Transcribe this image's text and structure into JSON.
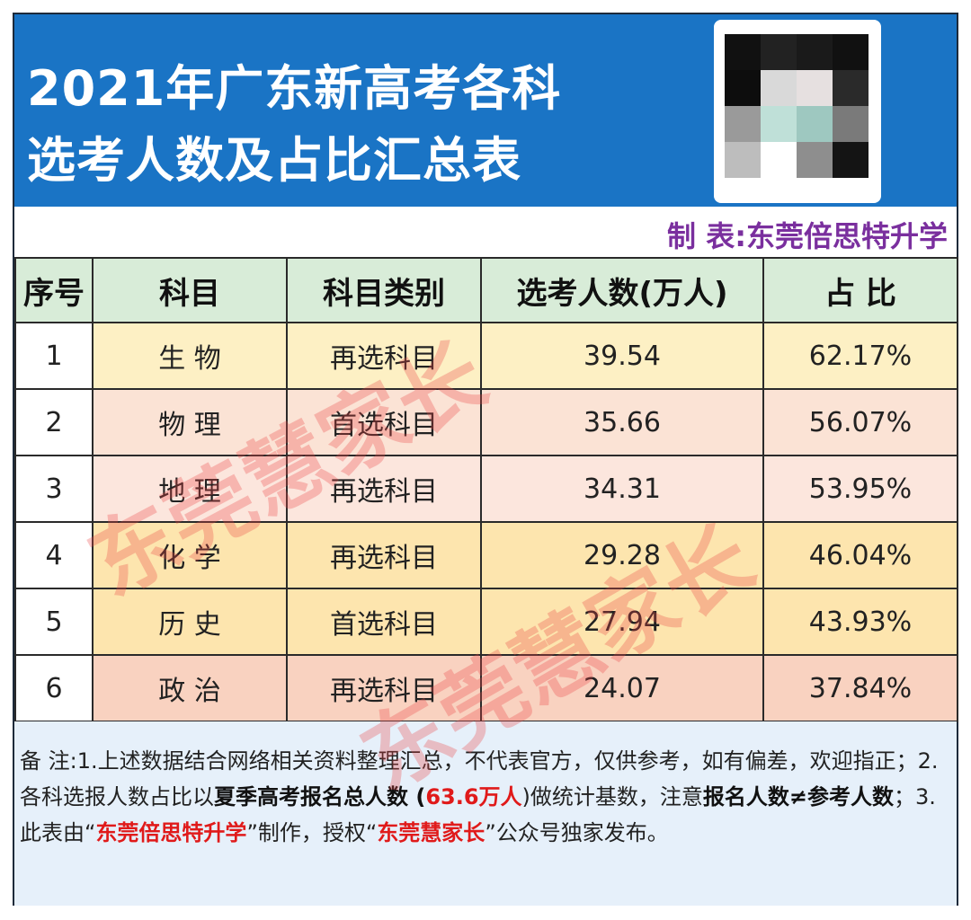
{
  "header": {
    "title_line1": "2021年广东新高考各科",
    "title_line2": "选考人数及占比汇总表",
    "maker": "制 表:东莞倍思特升学"
  },
  "table": {
    "headers": [
      "序号",
      "科目",
      "科目类别",
      "选考人数(万人)",
      "占 比"
    ],
    "rows": [
      {
        "seq": "1",
        "subject": "生 物",
        "category": "再选科目",
        "count": "39.54",
        "ratio": "62.17%"
      },
      {
        "seq": "2",
        "subject": "物 理",
        "category": "首选科目",
        "count": "35.66",
        "ratio": "56.07%"
      },
      {
        "seq": "3",
        "subject": "地 理",
        "category": "再选科目",
        "count": "34.31",
        "ratio": "53.95%"
      },
      {
        "seq": "4",
        "subject": "化 学",
        "category": "再选科目",
        "count": "29.28",
        "ratio": "46.04%"
      },
      {
        "seq": "5",
        "subject": "历 史",
        "category": "首选科目",
        "count": "27.94",
        "ratio": "43.93%"
      },
      {
        "seq": "6",
        "subject": "政 治",
        "category": "再选科目",
        "count": "24.07",
        "ratio": "37.84%"
      }
    ]
  },
  "note": {
    "p1": "备 注:1.上述数据结合网络相关资料整理汇总，不代表官方，仅供参考，如有偏差，欢迎指正；2.各科选报人数占比以",
    "b1": "夏季高考报名总人数",
    "p2": " (",
    "r1": "63.6万人",
    "p3": ")做统计基数，注意",
    "b2": "报名人数≠参考人数",
    "p4": "；3.此表由“",
    "r2": "东莞倍思特升学",
    "p5": "”制作，授权“",
    "r3": "东莞慧家长",
    "p6": "”公众号独家发布。"
  },
  "watermark": {
    "text1": "东莞慧家长",
    "text2": "东莞慧家长"
  },
  "colors": {
    "header_bg": "#1a74c5",
    "maker_text": "#7a2f9e",
    "table_header_bg": "#d8ecd8",
    "note_bg": "#e6f0fa",
    "highlight_red": "#e01a1a"
  }
}
